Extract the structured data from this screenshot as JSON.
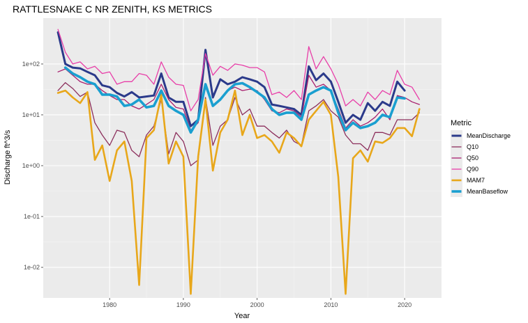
{
  "chart_data": {
    "type": "line",
    "title": "RATTLESNAKE C NR ZENITH, KS  METRICS",
    "xlabel": "Year",
    "ylabel": "Discharge ft^3/s",
    "y_scale": "log10",
    "xlim": [
      1971,
      2025
    ],
    "ylim": [
      0.0025,
      800
    ],
    "x_ticks": [
      1980,
      1990,
      2000,
      2010,
      2020
    ],
    "y_ticks": [
      {
        "value": 0.01,
        "label": "1e-02"
      },
      {
        "value": 0.1,
        "label": "1e-01"
      },
      {
        "value": 1,
        "label": "1e+00"
      },
      {
        "value": 10,
        "label": "1e+01"
      },
      {
        "value": 100,
        "label": "1e+02"
      }
    ],
    "grid": true,
    "legend_title": "Metric",
    "legend_position": "right",
    "x": [
      1973,
      1974,
      1975,
      1976,
      1977,
      1978,
      1979,
      1980,
      1981,
      1982,
      1983,
      1984,
      1985,
      1986,
      1987,
      1988,
      1989,
      1990,
      1991,
      1992,
      1993,
      1994,
      1995,
      1996,
      1997,
      1998,
      1999,
      2000,
      2001,
      2002,
      2003,
      2004,
      2005,
      2006,
      2007,
      2008,
      2009,
      2010,
      2011,
      2012,
      2013,
      2014,
      2015,
      2016,
      2017,
      2018,
      2019,
      2020,
      2021,
      2022
    ],
    "series": [
      {
        "name": "MeanDischarge",
        "color": "#2b3a8a",
        "width": 3,
        "values": [
          420,
          100,
          85,
          82,
          70,
          60,
          38,
          35,
          27,
          23,
          28,
          22,
          23,
          24,
          65,
          22,
          18,
          18,
          6,
          8,
          190,
          22,
          50,
          40,
          45,
          55,
          50,
          45,
          35,
          16,
          15,
          14,
          13,
          10,
          90,
          48,
          65,
          45,
          18,
          7,
          10,
          8,
          17,
          12,
          18,
          15,
          45,
          30,
          null,
          null
        ]
      },
      {
        "name": "Q10",
        "color": "#8c2f5c",
        "width": 1.3,
        "values": [
          30,
          43,
          33,
          23,
          28,
          7,
          4,
          2.5,
          5,
          4.5,
          2,
          1.5,
          4,
          6,
          20,
          1.7,
          4.5,
          3,
          1,
          1.3,
          22,
          2.5,
          6,
          8,
          22,
          10,
          13,
          6,
          6,
          4.5,
          3.5,
          5,
          3,
          2.5,
          12,
          15,
          20,
          12,
          9,
          4,
          2.7,
          2.7,
          2,
          4.5,
          4.5,
          4,
          8,
          8,
          8,
          11
        ]
      },
      {
        "name": "Q50",
        "color": "#a81f6e",
        "width": 1.3,
        "values": [
          70,
          80,
          60,
          45,
          40,
          40,
          30,
          24,
          20,
          20,
          15,
          13,
          16,
          20,
          40,
          20,
          14,
          13,
          5,
          7,
          35,
          15,
          20,
          30,
          35,
          30,
          32,
          30,
          20,
          12,
          11,
          13,
          12,
          9,
          60,
          35,
          40,
          30,
          13,
          5.5,
          8,
          6,
          7,
          9,
          13,
          8,
          24,
          22,
          18,
          16
        ]
      },
      {
        "name": "Q90",
        "color": "#e83ea8",
        "width": 1.3,
        "values": [
          480,
          170,
          100,
          110,
          80,
          90,
          65,
          70,
          40,
          45,
          45,
          65,
          60,
          40,
          110,
          55,
          40,
          38,
          12,
          20,
          160,
          60,
          90,
          75,
          100,
          95,
          85,
          85,
          70,
          25,
          28,
          22,
          30,
          20,
          220,
          80,
          140,
          80,
          40,
          15,
          20,
          15,
          28,
          20,
          30,
          25,
          75,
          40,
          35,
          20
        ]
      },
      {
        "name": "MAM7",
        "color": "#e8a71a",
        "width": 2.6,
        "values": [
          27,
          30,
          22,
          17,
          28,
          1.3,
          2.5,
          0.5,
          2,
          3,
          0.5,
          0.0045,
          3.5,
          5,
          25,
          1.1,
          3,
          1.5,
          0.003,
          1.5,
          20,
          0.8,
          4.5,
          8,
          30,
          4,
          10,
          3.5,
          4,
          3,
          1.8,
          4.5,
          3.5,
          2.4,
          8,
          12,
          18,
          10,
          0.6,
          0.003,
          1.4,
          2,
          1.2,
          3,
          2.8,
          3.5,
          5.5,
          5.5,
          3.8,
          13
        ]
      },
      {
        "name": "MeanBaseflow",
        "color": "#1a9fd0",
        "width": 3.6,
        "values": [
          null,
          85,
          65,
          55,
          45,
          40,
          25,
          25,
          23,
          15,
          16,
          20,
          14,
          15,
          30,
          15,
          12,
          10,
          4.5,
          8,
          40,
          15,
          20,
          30,
          40,
          42,
          35,
          28,
          22,
          13,
          10,
          11,
          11,
          8,
          25,
          30,
          35,
          30,
          11,
          5,
          7,
          5.5,
          6,
          7,
          10,
          9,
          22,
          21,
          null,
          null
        ]
      }
    ]
  }
}
